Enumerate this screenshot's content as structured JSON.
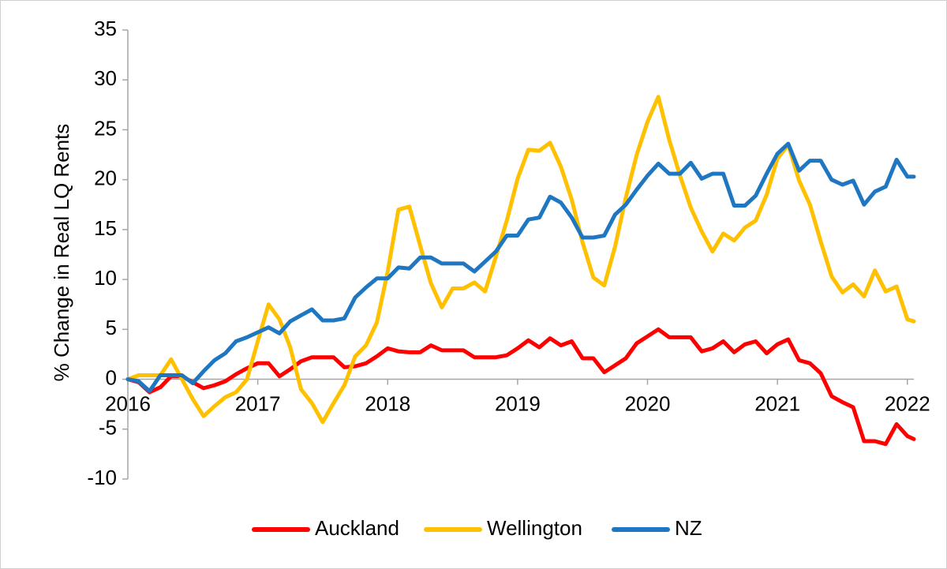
{
  "chart_data": {
    "type": "line",
    "title": "",
    "xlabel": "",
    "ylabel": "% Change in Real LQ Rents",
    "xlim": [
      2016.0,
      2022.05
    ],
    "ylim": [
      -10,
      35
    ],
    "yticks": [
      -10,
      -5,
      0,
      5,
      10,
      15,
      20,
      25,
      30,
      35
    ],
    "xticks": [
      2016,
      2017,
      2018,
      2019,
      2020,
      2021,
      2022
    ],
    "grid": false,
    "legend_position": "bottom",
    "colors": {
      "Auckland": "#ff0000",
      "Wellington": "#ffc000",
      "NZ": "#1f77c1"
    },
    "x": [
      2016.0,
      2016.083,
      2016.167,
      2016.25,
      2016.333,
      2016.417,
      2016.5,
      2016.583,
      2016.667,
      2016.75,
      2016.833,
      2016.917,
      2017.0,
      2017.083,
      2017.167,
      2017.25,
      2017.333,
      2017.417,
      2017.5,
      2017.583,
      2017.667,
      2017.75,
      2017.833,
      2017.917,
      2018.0,
      2018.083,
      2018.167,
      2018.25,
      2018.333,
      2018.417,
      2018.5,
      2018.583,
      2018.667,
      2018.75,
      2018.833,
      2018.917,
      2019.0,
      2019.083,
      2019.167,
      2019.25,
      2019.333,
      2019.417,
      2019.5,
      2019.583,
      2019.667,
      2019.75,
      2019.833,
      2019.917,
      2020.0,
      2020.083,
      2020.167,
      2020.25,
      2020.333,
      2020.417,
      2020.5,
      2020.583,
      2020.667,
      2020.75,
      2020.833,
      2020.917,
      2021.0,
      2021.083,
      2021.167,
      2021.25,
      2021.333,
      2021.417,
      2021.5,
      2021.583,
      2021.667,
      2021.75,
      2021.833,
      2021.917,
      2022.0,
      2022.05
    ],
    "series": [
      {
        "name": "Auckland",
        "values": [
          0,
          -0.3,
          -1.3,
          -0.8,
          0.3,
          0.3,
          -0.3,
          -0.9,
          -0.6,
          -0.2,
          0.5,
          1.1,
          1.6,
          1.6,
          0.3,
          1.0,
          1.8,
          2.2,
          2.2,
          2.2,
          1.2,
          1.3,
          1.6,
          2.3,
          3.1,
          2.8,
          2.7,
          2.7,
          3.4,
          2.9,
          2.9,
          2.9,
          2.2,
          2.2,
          2.2,
          2.4,
          3.1,
          3.9,
          3.2,
          4.1,
          3.4,
          3.8,
          2.1,
          2.1,
          0.7,
          1.4,
          2.1,
          3.6,
          4.3,
          5.0,
          4.2,
          4.2,
          4.2,
          2.8,
          3.1,
          3.8,
          2.7,
          3.5,
          3.8,
          2.6,
          3.5,
          4.0,
          1.9,
          1.6,
          0.6,
          -1.7,
          -2.3,
          -2.8,
          -6.2,
          -6.2,
          -6.5,
          -4.5,
          -5.7,
          -6.0
        ]
      },
      {
        "name": "Wellington",
        "values": [
          0,
          0.4,
          0.4,
          0.4,
          2.0,
          0,
          -2.0,
          -3.7,
          -2.7,
          -1.8,
          -1.3,
          0,
          3.8,
          7.5,
          6.0,
          3.2,
          -1.0,
          -2.4,
          -4.3,
          -2.4,
          -0.6,
          2.3,
          3.4,
          5.7,
          10.8,
          17.0,
          17.3,
          13.4,
          9.6,
          7.2,
          9.1,
          9.1,
          9.7,
          8.8,
          12.3,
          15.9,
          20.1,
          23.0,
          22.9,
          23.7,
          21.3,
          18.0,
          13.7,
          10.2,
          9.4,
          13.3,
          18.2,
          22.5,
          25.8,
          28.3,
          24.0,
          20.4,
          17.2,
          14.8,
          12.8,
          14.6,
          13.9,
          15.2,
          15.9,
          18.5,
          22.1,
          23.5,
          19.9,
          17.5,
          13.8,
          10.3,
          8.7,
          9.5,
          8.3,
          10.9,
          8.8,
          9.3,
          6.0,
          5.8
        ]
      },
      {
        "name": "NZ",
        "values": [
          0,
          -0.2,
          -1.2,
          0.4,
          0.4,
          0.4,
          -0.4,
          0.8,
          1.9,
          2.6,
          3.8,
          4.2,
          4.7,
          5.2,
          4.6,
          5.8,
          6.4,
          7.0,
          5.9,
          5.9,
          6.1,
          8.2,
          9.2,
          10.1,
          10.1,
          11.2,
          11.1,
          12.2,
          12.2,
          11.6,
          11.6,
          11.6,
          10.8,
          11.8,
          12.8,
          14.4,
          14.4,
          16.0,
          16.2,
          18.3,
          17.7,
          16.2,
          14.2,
          14.2,
          14.4,
          16.5,
          17.5,
          19.0,
          20.4,
          21.6,
          20.6,
          20.6,
          21.7,
          20.1,
          20.6,
          20.6,
          17.4,
          17.4,
          18.4,
          20.6,
          22.6,
          23.6,
          20.9,
          21.9,
          21.9,
          20.0,
          19.5,
          19.9,
          17.5,
          18.8,
          19.3,
          22.0,
          20.3,
          20.3
        ]
      }
    ]
  }
}
